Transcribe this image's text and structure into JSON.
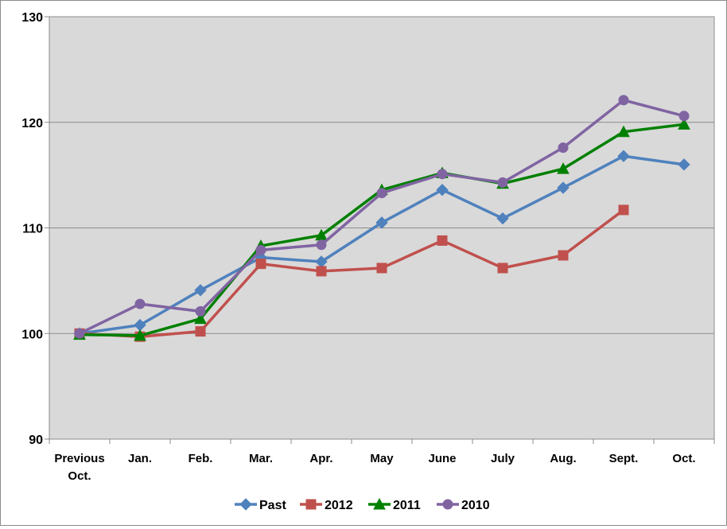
{
  "chart_data": {
    "type": "line",
    "categories": [
      [
        "Previous",
        "Oct."
      ],
      [
        "Jan."
      ],
      [
        "Feb."
      ],
      [
        "Mar."
      ],
      [
        "Apr."
      ],
      [
        "May"
      ],
      [
        "June"
      ],
      [
        "July"
      ],
      [
        "Aug."
      ],
      [
        "Sept."
      ],
      [
        "Oct."
      ]
    ],
    "y_ticks": [
      "90",
      "100",
      "110",
      "120",
      "130"
    ],
    "ylim": [
      90,
      130
    ],
    "y_tick_step": 10,
    "grid": true,
    "legend_position": "bottom",
    "background_color": "#d9d9d9",
    "series": [
      {
        "name": "Past",
        "color": "#4f81bd",
        "marker": "diamond",
        "values": [
          100,
          100.8,
          104.1,
          107.2,
          106.8,
          110.5,
          113.6,
          110.9,
          113.8,
          116.8,
          116.0
        ]
      },
      {
        "name": "2012",
        "color": "#c0504d",
        "marker": "square",
        "values": [
          100,
          99.7,
          100.2,
          106.6,
          105.9,
          106.2,
          108.8,
          106.2,
          107.4,
          111.7,
          null
        ]
      },
      {
        "name": "2011",
        "color": "#008000",
        "marker": "triangle",
        "values": [
          99.9,
          99.8,
          101.4,
          108.3,
          109.3,
          113.6,
          115.2,
          114.2,
          115.6,
          119.1,
          119.8
        ]
      },
      {
        "name": "2010",
        "color": "#8064a2",
        "marker": "circle",
        "values": [
          100,
          102.8,
          102.1,
          107.9,
          108.4,
          113.3,
          115.1,
          114.3,
          117.6,
          122.1,
          120.6
        ]
      }
    ]
  }
}
